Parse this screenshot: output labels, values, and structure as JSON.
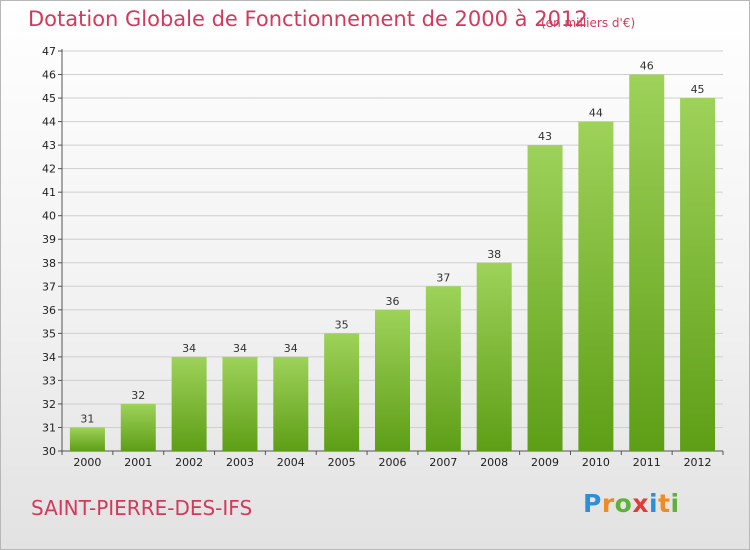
{
  "header": {
    "title": "Dotation Globale de Fonctionnement de 2000 à 2012",
    "subtitle": "(en milliers d'€)"
  },
  "footer": {
    "commune": "SAINT-PIERRE-DES-IFS",
    "brand_letters": [
      "P",
      "r",
      "o",
      "x",
      "i",
      "t",
      "i"
    ],
    "brand_colors": [
      "#2f8fd6",
      "#f08a22",
      "#5fb13a",
      "#e23b3b",
      "#2f8fd6",
      "#f08a22",
      "#5fb13a"
    ]
  },
  "colors": {
    "title": "#d23a5c",
    "bar_light": "#9ed25a",
    "bar_dark": "#5e9e16",
    "grid": "#cfcfcf",
    "axis": "#555555"
  },
  "chart_data": {
    "type": "bar",
    "categories": [
      "2000",
      "2001",
      "2002",
      "2003",
      "2004",
      "2005",
      "2006",
      "2007",
      "2008",
      "2009",
      "2010",
      "2011",
      "2012"
    ],
    "values": [
      31,
      32,
      34,
      34,
      34,
      35,
      36,
      37,
      38,
      43,
      44,
      46,
      45
    ],
    "title": "Dotation Globale de Fonctionnement de 2000 à 2012",
    "subtitle": "(en milliers d'€)",
    "ylim": [
      30,
      47
    ],
    "yticks": [
      30,
      31,
      32,
      33,
      34,
      35,
      36,
      37,
      38,
      39,
      40,
      41,
      42,
      43,
      44,
      45,
      46,
      47
    ],
    "grid": true,
    "data_labels": true
  }
}
